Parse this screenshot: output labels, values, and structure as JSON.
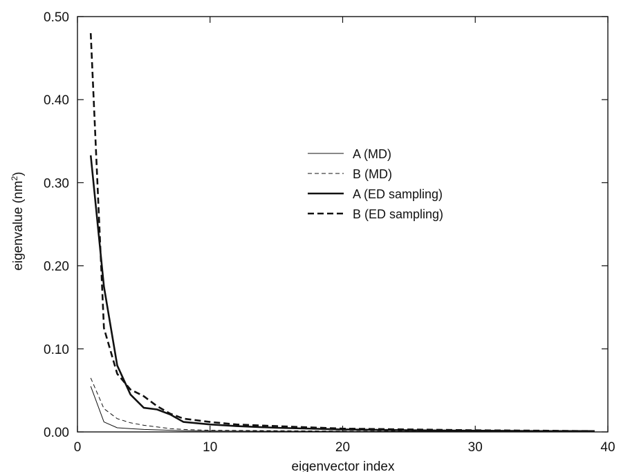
{
  "chart_data": {
    "type": "line",
    "xlabel": "eigenvector index",
    "ylabel": "eigenvalue (nm",
    "ylabel_sup": "2",
    "ylabel_close": ")",
    "xlim": [
      0,
      40
    ],
    "ylim": [
      0,
      0.5
    ],
    "xticks": [
      0,
      10,
      20,
      30,
      40
    ],
    "xtick_labels": [
      "0",
      "10",
      "20",
      "30",
      "40"
    ],
    "yticks": [
      0,
      0.1,
      0.2,
      0.3,
      0.4,
      0.5
    ],
    "ytick_labels": [
      "0.00",
      "0.10",
      "0.20",
      "0.30",
      "0.40",
      "0.50"
    ],
    "grid": false,
    "legend_position": "center-right",
    "series": [
      {
        "name": "A (MD)",
        "style": "thin-solid",
        "x": [
          1,
          2,
          3,
          4,
          5,
          6,
          7,
          8,
          10,
          15,
          20,
          25,
          30,
          35,
          39
        ],
        "y": [
          0.055,
          0.012,
          0.005,
          0.004,
          0.003,
          0.0025,
          0.002,
          0.0015,
          0.001,
          0.0008,
          0.0006,
          0.0004,
          0.0003,
          0.0002,
          0.0002
        ]
      },
      {
        "name": "B (MD)",
        "style": "thin-dashed",
        "x": [
          1,
          2,
          3,
          4,
          5,
          6,
          7,
          8,
          10,
          15,
          20,
          25,
          30,
          35,
          39
        ],
        "y": [
          0.065,
          0.028,
          0.016,
          0.011,
          0.008,
          0.006,
          0.004,
          0.003,
          0.002,
          0.0015,
          0.001,
          0.0008,
          0.0006,
          0.0004,
          0.0003
        ]
      },
      {
        "name": "A (ED sampling)",
        "style": "thick-solid",
        "x": [
          1,
          2,
          3,
          4,
          5,
          6,
          7,
          8,
          10,
          12,
          15,
          20,
          25,
          30,
          35,
          39
        ],
        "y": [
          0.333,
          0.175,
          0.08,
          0.045,
          0.029,
          0.027,
          0.021,
          0.012,
          0.009,
          0.007,
          0.005,
          0.003,
          0.002,
          0.0015,
          0.001,
          0.001
        ]
      },
      {
        "name": "B (ED sampling)",
        "style": "thick-dashed",
        "x": [
          1,
          2,
          3,
          4,
          5,
          6,
          7,
          8,
          10,
          12,
          15,
          20,
          25,
          30,
          35,
          39
        ],
        "y": [
          0.48,
          0.125,
          0.07,
          0.051,
          0.043,
          0.031,
          0.022,
          0.016,
          0.012,
          0.009,
          0.007,
          0.004,
          0.003,
          0.002,
          0.0015,
          0.001
        ]
      }
    ]
  }
}
